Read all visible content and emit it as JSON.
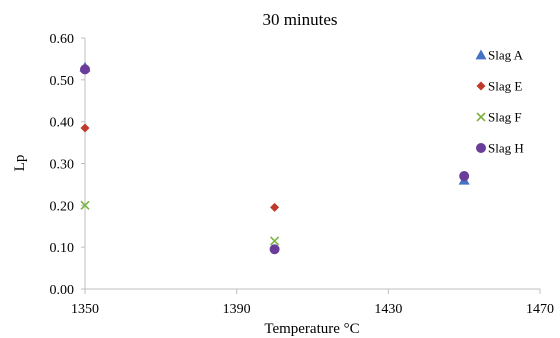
{
  "chart_data": {
    "type": "scatter",
    "title": "30 minutes",
    "xlabel": "Temperature °C",
    "ylabel": "Lp",
    "xlim": [
      1350,
      1470
    ],
    "ylim": [
      0,
      0.6
    ],
    "xticks": [
      1350,
      1390,
      1430,
      1470
    ],
    "xtick_labels": [
      "1350",
      "1390",
      "1430",
      "1470"
    ],
    "yticks": [
      0,
      0.1,
      0.2,
      0.3,
      0.4,
      0.5,
      0.6
    ],
    "ytick_labels": [
      "0.00",
      "0.10",
      "0.20",
      "0.30",
      "0.40",
      "0.50",
      "0.60"
    ],
    "grid": false,
    "legend_position": "right",
    "series": [
      {
        "name": "Slag A",
        "marker": "triangle",
        "color": "#4472c4",
        "points": [
          {
            "x": 1350,
            "y": 0.53
          },
          {
            "x": 1450,
            "y": 0.26
          }
        ]
      },
      {
        "name": "Slag E",
        "marker": "diamond",
        "color": "#c0392b",
        "points": [
          {
            "x": 1350,
            "y": 0.385
          },
          {
            "x": 1400,
            "y": 0.195
          }
        ]
      },
      {
        "name": "Slag F",
        "marker": "x",
        "color": "#7cb342",
        "points": [
          {
            "x": 1350,
            "y": 0.2
          },
          {
            "x": 1400,
            "y": 0.115
          }
        ]
      },
      {
        "name": "Slag H",
        "marker": "circle",
        "color": "#6a3d9a",
        "points": [
          {
            "x": 1350,
            "y": 0.525
          },
          {
            "x": 1400,
            "y": 0.095
          },
          {
            "x": 1450,
            "y": 0.27
          }
        ]
      }
    ]
  }
}
